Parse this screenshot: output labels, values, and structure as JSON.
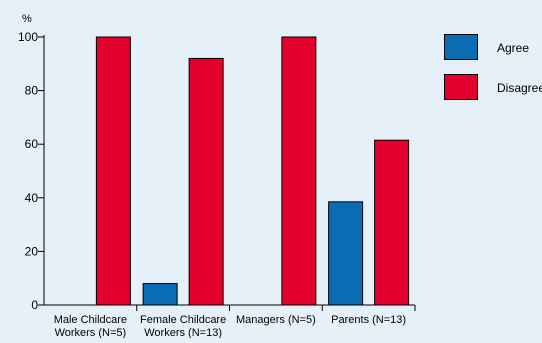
{
  "chart_data": {
    "type": "bar",
    "title": "",
    "xlabel": "",
    "ylabel": "%",
    "ylim": [
      0,
      100
    ],
    "yticks": [
      0,
      20,
      40,
      60,
      80,
      100
    ],
    "grid": false,
    "legend_position": "top-right",
    "categories": [
      [
        "Male Childcare",
        "Workers (N=5)"
      ],
      [
        "Female Childcare",
        "Workers (N=13)"
      ],
      [
        "Managers (N=5)"
      ],
      [
        "Parents (N=13)"
      ]
    ],
    "series": [
      {
        "name": "Agree",
        "color": "#0a6db3",
        "values": [
          0,
          8,
          0,
          38.5
        ]
      },
      {
        "name": "Disagree",
        "color": "#e3002d",
        "values": [
          100,
          92,
          100,
          61.5
        ]
      }
    ]
  }
}
